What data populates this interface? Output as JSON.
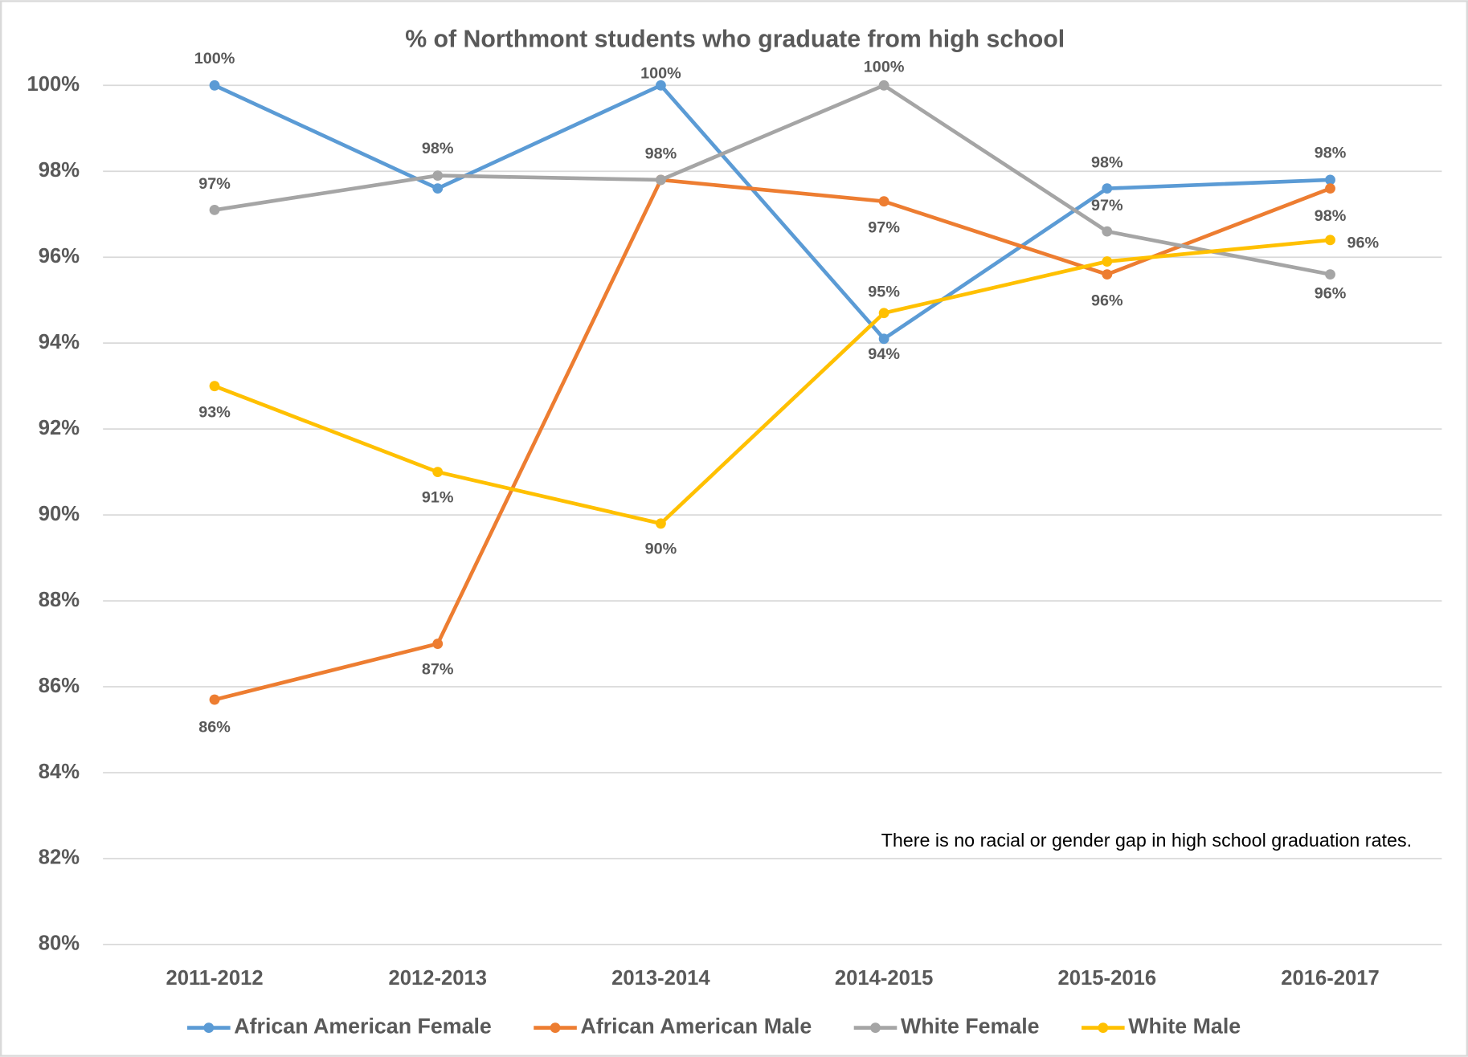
{
  "chart_data": {
    "type": "line",
    "title": "% of Northmont students who graduate from high school",
    "annotation": "There is no racial or gender gap in high school graduation rates.",
    "categories": [
      "2011-2012",
      "2012-2013",
      "2013-2014",
      "2014-2015",
      "2015-2016",
      "2016-2017"
    ],
    "series": [
      {
        "name": "African American Female",
        "color": "#5b9bd5",
        "values": [
          100,
          97.6,
          100,
          94.1,
          97.6,
          97.8
        ],
        "value_labels": [
          "100%",
          null,
          "100%",
          "94%",
          "98%",
          "98%"
        ]
      },
      {
        "name": "African American Male",
        "color": "#ed7d31",
        "values": [
          85.7,
          87.0,
          97.8,
          97.3,
          95.6,
          97.6
        ],
        "value_labels": [
          "86%",
          "87%",
          "98%",
          "97%",
          "96%",
          "98%"
        ]
      },
      {
        "name": "White Female",
        "color": "#a5a5a5",
        "values": [
          97.1,
          97.9,
          97.8,
          100,
          96.6,
          95.6
        ],
        "value_labels": [
          "97%",
          "98%",
          null,
          "100%",
          "97%",
          "96%"
        ]
      },
      {
        "name": "White Male",
        "color": "#ffc000",
        "values": [
          93.0,
          91.0,
          89.8,
          94.7,
          95.9,
          96.4
        ],
        "value_labels": [
          "93%",
          "91%",
          "90%",
          "95%",
          null,
          "96%"
        ]
      }
    ],
    "ylim": [
      80,
      100
    ],
    "yticks": [
      {
        "value": 80,
        "label": "80%"
      },
      {
        "value": 82,
        "label": "82%"
      },
      {
        "value": 84,
        "label": "84%"
      },
      {
        "value": 86,
        "label": "86%"
      },
      {
        "value": 88,
        "label": "88%"
      },
      {
        "value": 90,
        "label": "90%"
      },
      {
        "value": 92,
        "label": "92%"
      },
      {
        "value": 94,
        "label": "94%"
      },
      {
        "value": 96,
        "label": "96%"
      },
      {
        "value": 98,
        "label": "98%"
      },
      {
        "value": 100,
        "label": "100%"
      }
    ],
    "grid": true,
    "legend": "bottom"
  }
}
